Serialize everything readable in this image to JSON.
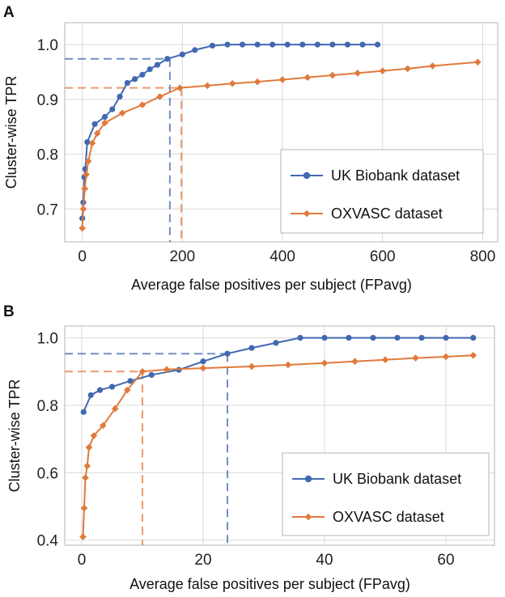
{
  "chart_data": [
    {
      "panel": "A",
      "type": "line",
      "xlabel": "Average false positives per subject (FPavg)",
      "ylabel": "Cluster-wise TPR",
      "xlim": [
        -35,
        830
      ],
      "ylim": [
        0.64,
        1.04
      ],
      "xticks": [
        0,
        200,
        400,
        600,
        800
      ],
      "yticks": [
        0.7,
        0.8,
        0.9,
        1.0
      ],
      "xtick_labels": [
        "0",
        "200",
        "400",
        "600",
        "800"
      ],
      "ytick_labels": [
        "0.7",
        "0.8",
        "0.9",
        "1.0"
      ],
      "legend_position": "lower-right",
      "series": [
        {
          "name": "UK Biobank dataset",
          "color": "#4169b0",
          "marker": "circle",
          "x": [
            0,
            2,
            4,
            6,
            10,
            25,
            45,
            60,
            75,
            90,
            105,
            120,
            135,
            150,
            170,
            200,
            225,
            260,
            290,
            320,
            350,
            380,
            410,
            440,
            470,
            500,
            530,
            560,
            590
          ],
          "y": [
            0.683,
            0.712,
            0.758,
            0.773,
            0.822,
            0.855,
            0.868,
            0.882,
            0.905,
            0.93,
            0.937,
            0.945,
            0.955,
            0.963,
            0.974,
            0.982,
            0.99,
            0.998,
            1.0,
            1.0,
            1.0,
            1.0,
            1.0,
            1.0,
            1.0,
            1.0,
            1.0,
            1.0,
            1.0
          ],
          "threshold": {
            "x": 175,
            "y": 0.974
          }
        },
        {
          "name": "OXVASC dataset",
          "color": "#e07a3c",
          "marker": "diamond",
          "x": [
            0,
            2,
            5,
            8,
            12,
            20,
            30,
            45,
            80,
            120,
            155,
            195,
            250,
            300,
            350,
            400,
            450,
            500,
            550,
            600,
            650,
            700,
            790
          ],
          "y": [
            0.665,
            0.7,
            0.737,
            0.763,
            0.787,
            0.82,
            0.838,
            0.857,
            0.875,
            0.89,
            0.905,
            0.921,
            0.925,
            0.929,
            0.932,
            0.936,
            0.94,
            0.944,
            0.948,
            0.952,
            0.956,
            0.961,
            0.968
          ],
          "threshold": {
            "x": 198,
            "y": 0.921
          }
        }
      ]
    },
    {
      "panel": "B",
      "type": "line",
      "xlabel": "Average false positives per subject (FPavg)",
      "ylabel": "Cluster-wise TPR",
      "xlim": [
        -2.8,
        68
      ],
      "ylim": [
        0.385,
        1.035
      ],
      "xticks": [
        0,
        20,
        40,
        60
      ],
      "yticks": [
        0.4,
        0.6,
        0.8,
        1.0
      ],
      "xtick_labels": [
        "0",
        "20",
        "40",
        "60"
      ],
      "ytick_labels": [
        "0.4",
        "0.6",
        "0.8",
        "1.0"
      ],
      "legend_position": "lower-right",
      "series": [
        {
          "name": "UK Biobank dataset",
          "color": "#4169b0",
          "marker": "circle",
          "x": [
            0.3,
            1.5,
            3.0,
            5.0,
            8.0,
            11.5,
            16.0,
            20.0,
            24.0,
            28.0,
            32.0,
            36.0,
            40.0,
            44.0,
            48.0,
            52.0,
            56.0,
            60.0,
            64.5
          ],
          "y": [
            0.78,
            0.83,
            0.845,
            0.855,
            0.872,
            0.89,
            0.905,
            0.93,
            0.953,
            0.97,
            0.985,
            1.0,
            1.0,
            1.0,
            1.0,
            1.0,
            1.0,
            1.0,
            1.0
          ],
          "threshold": {
            "x": 24,
            "y": 0.953
          }
        },
        {
          "name": "OXVASC dataset",
          "color": "#e07a3c",
          "marker": "diamond",
          "x": [
            0.2,
            0.4,
            0.6,
            0.9,
            1.2,
            2.0,
            3.5,
            5.5,
            7.5,
            10.0,
            14.0,
            20.0,
            28.0,
            34.0,
            40.0,
            45.0,
            50.0,
            55.0,
            60.0,
            64.5
          ],
          "y": [
            0.41,
            0.495,
            0.585,
            0.62,
            0.675,
            0.71,
            0.74,
            0.79,
            0.845,
            0.9,
            0.906,
            0.91,
            0.915,
            0.92,
            0.925,
            0.93,
            0.935,
            0.94,
            0.944,
            0.948
          ],
          "threshold": {
            "x": 10,
            "y": 0.9
          }
        }
      ]
    }
  ]
}
